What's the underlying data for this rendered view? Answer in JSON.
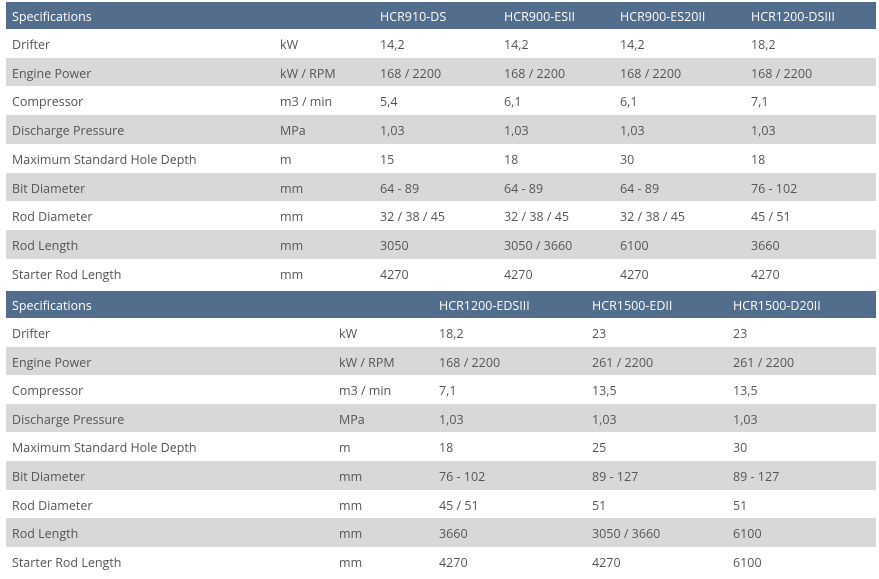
{
  "tables": [
    {
      "title": "Specifications",
      "models": [
        "HCR910-DS",
        "HCR900-ESII",
        "HCR900-ES20II",
        "HCR1200-DSIII"
      ],
      "rows": [
        {
          "label": "Drifter",
          "unit": "kW",
          "values": [
            "14,2",
            "14,2",
            "14,2",
            "18,2"
          ]
        },
        {
          "label": "Engine Power",
          "unit": "kW / RPM",
          "values": [
            "168 / 2200",
            "168 / 2200",
            "168 / 2200",
            "168 / 2200"
          ]
        },
        {
          "label": "Compressor",
          "unit": "m3 / min",
          "values": [
            "5,4",
            "6,1",
            "6,1",
            "7,1"
          ]
        },
        {
          "label": "Discharge Pressure",
          "unit": "MPa",
          "values": [
            "1,03",
            "1,03",
            "1,03",
            "1,03"
          ]
        },
        {
          "label": "Maximum Standard Hole Depth",
          "unit": "m",
          "values": [
            "15",
            "18",
            "30",
            "18"
          ]
        },
        {
          "label": "Bit Diameter",
          "unit": "mm",
          "values": [
            "64 - 89",
            "64 - 89",
            "64 - 89",
            "76 - 102"
          ]
        },
        {
          "label": "Rod Diameter",
          "unit": "mm",
          "values": [
            "32 / 38 / 45",
            "32 / 38 / 45",
            "32 / 38 / 45",
            "45 / 51"
          ]
        },
        {
          "label": "Rod Length",
          "unit": "mm",
          "values": [
            "3050",
            "3050 / 3660",
            "6100",
            "3660"
          ]
        },
        {
          "label": "Starter Rod Length",
          "unit": "mm",
          "values": [
            "4270",
            "4270",
            "4270",
            "4270"
          ]
        }
      ]
    },
    {
      "title": "Specifications",
      "models": [
        "HCR1200-EDSIII",
        "HCR1500-EDII",
        "HCR1500-D20II"
      ],
      "rows": [
        {
          "label": "Drifter",
          "unit": "kW",
          "values": [
            "18,2",
            "23",
            "23"
          ]
        },
        {
          "label": "Engine Power",
          "unit": "kW / RPM",
          "values": [
            "168 / 2200",
            "261 / 2200",
            "261 / 2200"
          ]
        },
        {
          "label": "Compressor",
          "unit": "m3 / min",
          "values": [
            "7,1",
            "13,5",
            "13,5"
          ]
        },
        {
          "label": "Discharge Pressure",
          "unit": "MPa",
          "values": [
            "1,03",
            "1,03",
            "1,03"
          ]
        },
        {
          "label": "Maximum Standard Hole Depth",
          "unit": "m",
          "values": [
            "18",
            "25",
            "30"
          ]
        },
        {
          "label": "Bit Diameter",
          "unit": "mm",
          "values": [
            "76 - 102",
            "89 - 127",
            "89 - 127"
          ]
        },
        {
          "label": "Rod Diameter",
          "unit": "mm",
          "values": [
            "45 / 51",
            "51",
            "51"
          ]
        },
        {
          "label": "Rod Length",
          "unit": "mm",
          "values": [
            "3660",
            "3050 / 3660",
            "6100"
          ]
        },
        {
          "label": "Starter Rod Length",
          "unit": "mm",
          "values": [
            "4270",
            "4270",
            "6100"
          ]
        }
      ]
    }
  ]
}
